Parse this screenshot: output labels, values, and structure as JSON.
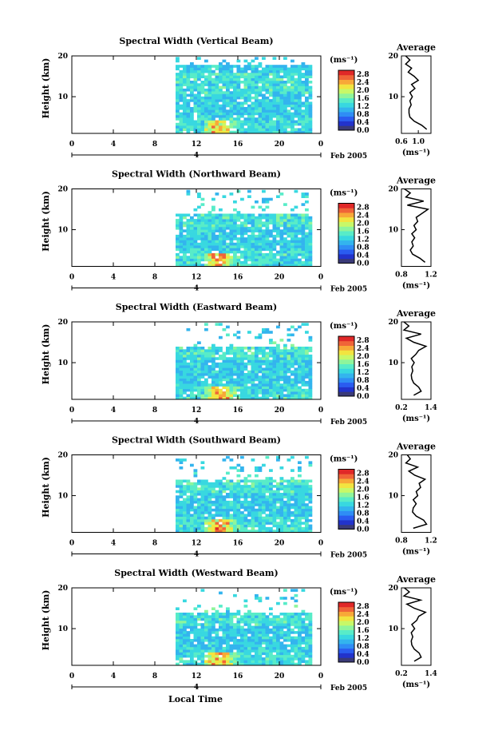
{
  "figure": {
    "xlabel": "Local Time",
    "date_label": "Feb 2005",
    "date_day": "4",
    "height_label": "Height (km)",
    "colorbar_unit": "(ms⁻¹)",
    "profile_title": "Average",
    "profile_unit": "(ms⁻¹)",
    "colorbar_ticks": [
      "0.0",
      "0.4",
      "0.8",
      "1.2",
      "1.6",
      "2.0",
      "2.4",
      "2.8"
    ],
    "colorbar_colors": [
      "#3a3a78",
      "#2233cc",
      "#2a5cf0",
      "#2f8df5",
      "#33b4ee",
      "#38d8e0",
      "#58ecc8",
      "#8ef59c",
      "#c8f868",
      "#f2e440",
      "#f8a838",
      "#f06438",
      "#e02828"
    ]
  },
  "chart_data": [
    {
      "type": "heatmap",
      "title": "Spectral Width (Vertical Beam)",
      "xlabel": "Local Time",
      "ylabel": "Height (km)",
      "x_ticks": [
        "0",
        "4",
        "8",
        "12",
        "16",
        "20",
        "0"
      ],
      "y_ticks": [
        "20",
        "10"
      ],
      "xlim": [
        0,
        24
      ],
      "ylim": [
        1,
        20
      ],
      "data_start_hour": 10,
      "data_end_hour": 23,
      "colorbar": {
        "min": 0.0,
        "max": 3.0,
        "unit": "ms-1"
      },
      "profile": {
        "title": "Average",
        "xlim": [
          0.6,
          1.3
        ],
        "x_ticks": [
          "0.6",
          "1.0"
        ],
        "heights": [
          2,
          3,
          4,
          5,
          6,
          7,
          8,
          9,
          10,
          11,
          12,
          13,
          14,
          15,
          16,
          17,
          18,
          19,
          20
        ],
        "values": [
          1.2,
          1.08,
          0.9,
          0.8,
          0.78,
          0.78,
          0.83,
          0.8,
          0.86,
          0.8,
          0.92,
          0.84,
          1.0,
          0.9,
          0.76,
          0.84,
          0.7,
          0.8,
          0.7
        ]
      }
    },
    {
      "type": "heatmap",
      "title": "Spectral Width (Northward Beam)",
      "xlabel": "Local Time",
      "ylabel": "Height (km)",
      "x_ticks": [
        "0",
        "4",
        "8",
        "12",
        "16",
        "20",
        "0"
      ],
      "y_ticks": [
        "20",
        "10"
      ],
      "xlim": [
        0,
        24
      ],
      "ylim": [
        1,
        20
      ],
      "data_start_hour": 10,
      "data_end_hour": 23,
      "colorbar": {
        "min": 0.0,
        "max": 3.0,
        "unit": "ms-1"
      },
      "profile": {
        "title": "Average",
        "xlim": [
          0.8,
          1.2
        ],
        "x_ticks": [
          "0.8",
          "1.2"
        ],
        "heights": [
          2,
          3,
          4,
          5,
          6,
          7,
          8,
          9,
          10,
          11,
          12,
          13,
          14,
          15,
          16,
          17,
          18,
          19,
          20
        ],
        "values": [
          1.12,
          1.05,
          0.95,
          0.92,
          0.96,
          0.94,
          0.98,
          0.94,
          1.0,
          0.97,
          1.02,
          1.0,
          1.08,
          1.16,
          0.88,
          1.1,
          0.86,
          0.92,
          0.84
        ]
      }
    },
    {
      "type": "heatmap",
      "title": "Spectral Width (Eastward Beam)",
      "xlabel": "Local Time",
      "ylabel": "Height (km)",
      "x_ticks": [
        "0",
        "4",
        "8",
        "12",
        "16",
        "20",
        "0"
      ],
      "y_ticks": [
        "20",
        "10"
      ],
      "xlim": [
        0,
        24
      ],
      "ylim": [
        1,
        20
      ],
      "data_start_hour": 10,
      "data_end_hour": 23,
      "colorbar": {
        "min": 0.0,
        "max": 3.0,
        "unit": "ms-1"
      },
      "profile": {
        "title": "Average",
        "xlim": [
          0.2,
          1.4
        ],
        "x_ticks": [
          "0.2",
          "1.4"
        ],
        "heights": [
          2,
          3,
          4,
          5,
          6,
          7,
          8,
          9,
          10,
          11,
          12,
          13,
          14,
          15,
          16,
          17,
          18,
          19,
          20
        ],
        "values": [
          0.7,
          1.0,
          0.9,
          0.7,
          0.62,
          0.6,
          0.66,
          0.62,
          0.72,
          0.6,
          0.78,
          0.9,
          1.2,
          0.7,
          0.4,
          1.0,
          0.3,
          0.5,
          0.3
        ]
      }
    },
    {
      "type": "heatmap",
      "title": "Spectral Width (Southward Beam)",
      "xlabel": "Local Time",
      "ylabel": "Height (km)",
      "x_ticks": [
        "0",
        "4",
        "8",
        "12",
        "16",
        "20",
        "0"
      ],
      "y_ticks": [
        "20",
        "10"
      ],
      "xlim": [
        0,
        24
      ],
      "ylim": [
        1,
        20
      ],
      "data_start_hour": 10,
      "data_end_hour": 23,
      "colorbar": {
        "min": 0.0,
        "max": 3.0,
        "unit": "ms-1"
      },
      "profile": {
        "title": "Average",
        "xlim": [
          0.8,
          1.2
        ],
        "x_ticks": [
          "0.8",
          "1.2"
        ],
        "heights": [
          2,
          3,
          4,
          5,
          6,
          7,
          8,
          9,
          10,
          11,
          12,
          13,
          14,
          15,
          16,
          17,
          18,
          19,
          20
        ],
        "values": [
          0.96,
          1.14,
          1.1,
          1.0,
          0.95,
          0.96,
          1.0,
          0.96,
          1.02,
          1.0,
          1.06,
          1.04,
          1.12,
          0.98,
          0.9,
          1.02,
          0.86,
          0.92,
          0.88
        ]
      }
    },
    {
      "type": "heatmap",
      "title": "Spectral Width (Westward Beam)",
      "xlabel": "Local Time",
      "ylabel": "Height (km)",
      "x_ticks": [
        "0",
        "4",
        "8",
        "12",
        "16",
        "20",
        "0"
      ],
      "y_ticks": [
        "20",
        "10"
      ],
      "xlim": [
        0,
        24
      ],
      "ylim": [
        1,
        20
      ],
      "data_start_hour": 10,
      "data_end_hour": 23,
      "colorbar": {
        "min": 0.0,
        "max": 3.0,
        "unit": "ms-1"
      },
      "profile": {
        "title": "Average",
        "xlim": [
          0.2,
          1.4
        ],
        "x_ticks": [
          "0.2",
          "1.4"
        ],
        "heights": [
          2,
          3,
          4,
          5,
          6,
          7,
          8,
          9,
          10,
          11,
          12,
          13,
          14,
          15,
          16,
          17,
          18,
          19,
          20
        ],
        "values": [
          0.72,
          1.0,
          0.92,
          0.72,
          0.62,
          0.6,
          0.66,
          0.6,
          0.74,
          0.62,
          0.82,
          0.9,
          1.18,
          0.72,
          0.42,
          0.98,
          0.3,
          0.52,
          0.32
        ]
      }
    }
  ]
}
